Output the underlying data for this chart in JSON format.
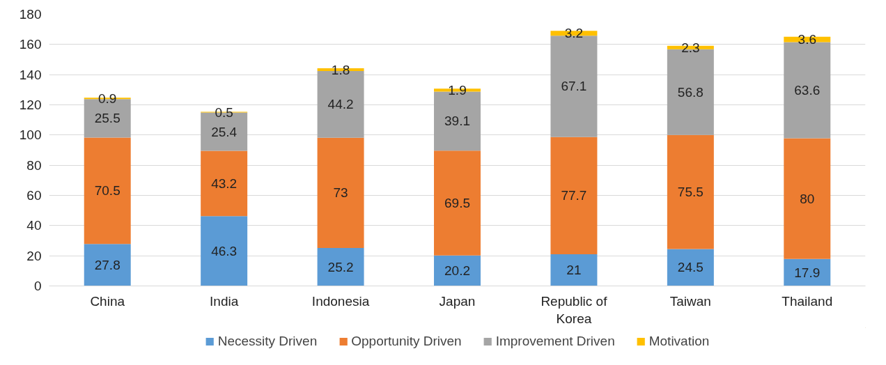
{
  "chart_data": {
    "type": "bar",
    "stacked": true,
    "data_labels": true,
    "grid": "y",
    "legend": "bottom",
    "categories": [
      "China",
      "India",
      "Indonesia",
      "Japan",
      "Republic of Korea",
      "Taiwan",
      "Thailand"
    ],
    "ylim": [
      0,
      180
    ],
    "yticks": [
      0,
      20,
      40,
      60,
      80,
      100,
      120,
      140,
      160,
      180
    ],
    "series": [
      {
        "name": "Necessity Driven",
        "color": "#5b9bd5",
        "values": [
          27.8,
          46.3,
          25.2,
          20.2,
          21,
          24.5,
          17.9
        ]
      },
      {
        "name": "Opportunity Driven",
        "color": "#ed7d31",
        "values": [
          70.5,
          43.2,
          73,
          69.5,
          77.7,
          75.5,
          80
        ]
      },
      {
        "name": "Improvement Driven",
        "color": "#a5a5a5",
        "values": [
          25.5,
          25.4,
          44.2,
          39.1,
          67.1,
          56.8,
          63.6
        ]
      },
      {
        "name": "Motivation",
        "color": "#ffc000",
        "values": [
          0.9,
          0.5,
          1.8,
          1.9,
          3.2,
          2.3,
          3.6
        ]
      }
    ]
  }
}
